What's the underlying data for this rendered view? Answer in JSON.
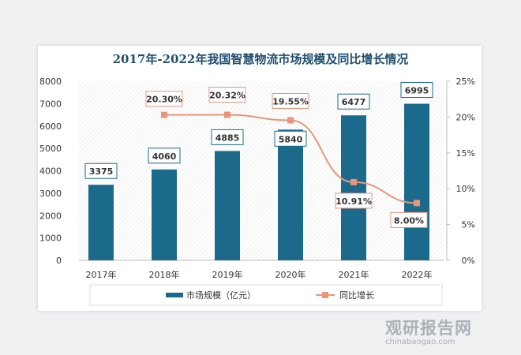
{
  "chart_data": {
    "type": "bar+line",
    "title": "2017年-2022年我国智慧物流市场规模及同比增长情况",
    "categories": [
      "2017年",
      "2018年",
      "2019年",
      "2020年",
      "2021年",
      "2022年"
    ],
    "series": [
      {
        "name": "市场规模（亿元）",
        "type": "bar",
        "axis": "left",
        "color": "#1b6a8c",
        "values": [
          3375,
          4060,
          4885,
          5840,
          6477,
          6995
        ],
        "labels": [
          "3375",
          "4060",
          "4885",
          "5840",
          "6477",
          "6995"
        ]
      },
      {
        "name": "同比增长",
        "type": "line",
        "axis": "right",
        "color": "#e8957a",
        "values": [
          null,
          20.3,
          20.32,
          19.55,
          10.91,
          8.0
        ],
        "labels": [
          "",
          "20.30%",
          "20.32%",
          "19.55%",
          "10.91%",
          "8.00%"
        ]
      }
    ],
    "left_axis": {
      "ylim": [
        0,
        8000
      ],
      "ticks": [
        "0",
        "1000",
        "2000",
        "3000",
        "4000",
        "5000",
        "6000",
        "7000",
        "8000"
      ]
    },
    "right_axis": {
      "ylim": [
        0,
        25
      ],
      "ticks": [
        "0%",
        "5%",
        "10%",
        "15%",
        "20%",
        "25%"
      ]
    },
    "legend_placement": "bottom",
    "grid": false
  },
  "watermark": {
    "name": "观研报告网",
    "url": "chinabaogao.com"
  }
}
